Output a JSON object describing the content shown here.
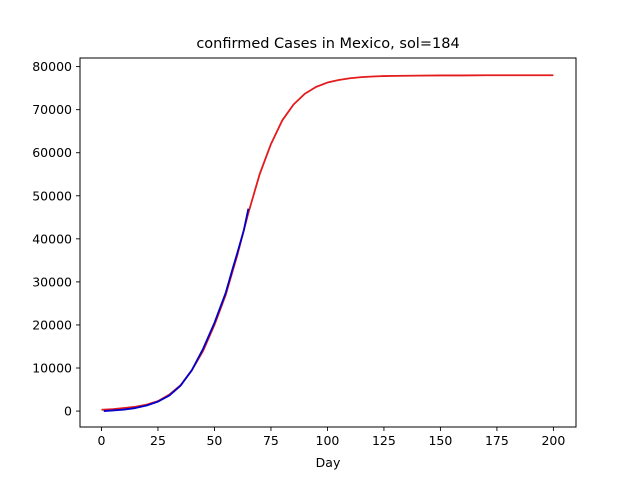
{
  "chart_data": {
    "type": "line",
    "title": "confirmed Cases in Mexico, sol=184",
    "xlabel": "Day",
    "ylabel": "",
    "xlim": [
      -9.5,
      210
    ],
    "ylim": [
      -3700,
      82000
    ],
    "xticks": [
      0,
      25,
      50,
      75,
      100,
      125,
      150,
      175,
      200
    ],
    "yticks": [
      0,
      10000,
      20000,
      30000,
      40000,
      50000,
      60000,
      70000,
      80000
    ],
    "grid": false,
    "series": [
      {
        "role": "fit",
        "color": "#e41a1c",
        "x": [
          0,
          5,
          10,
          15,
          20,
          25,
          30,
          35,
          40,
          45,
          50,
          55,
          60,
          65,
          70,
          75,
          80,
          85,
          90,
          95,
          100,
          105,
          110,
          115,
          120,
          125,
          130,
          140,
          150,
          160,
          170,
          180,
          190,
          200
        ],
        "y": [
          300,
          450,
          700,
          1000,
          1500,
          2300,
          3800,
          6000,
          9500,
          14000,
          20000,
          27000,
          36000,
          46000,
          55000,
          62000,
          67500,
          71200,
          73700,
          75300,
          76300,
          76900,
          77300,
          77550,
          77700,
          77800,
          77850,
          77900,
          77950,
          77950,
          78000,
          78000,
          78000,
          78000
        ]
      },
      {
        "role": "observed",
        "color": "#0000cc",
        "x": [
          1,
          5,
          10,
          15,
          20,
          25,
          30,
          35,
          40,
          45,
          50,
          55,
          58,
          60,
          63,
          65
        ],
        "y": [
          0,
          150,
          350,
          700,
          1300,
          2200,
          3600,
          5900,
          9500,
          14500,
          20500,
          27500,
          33000,
          36500,
          42000,
          47000
        ]
      }
    ]
  }
}
